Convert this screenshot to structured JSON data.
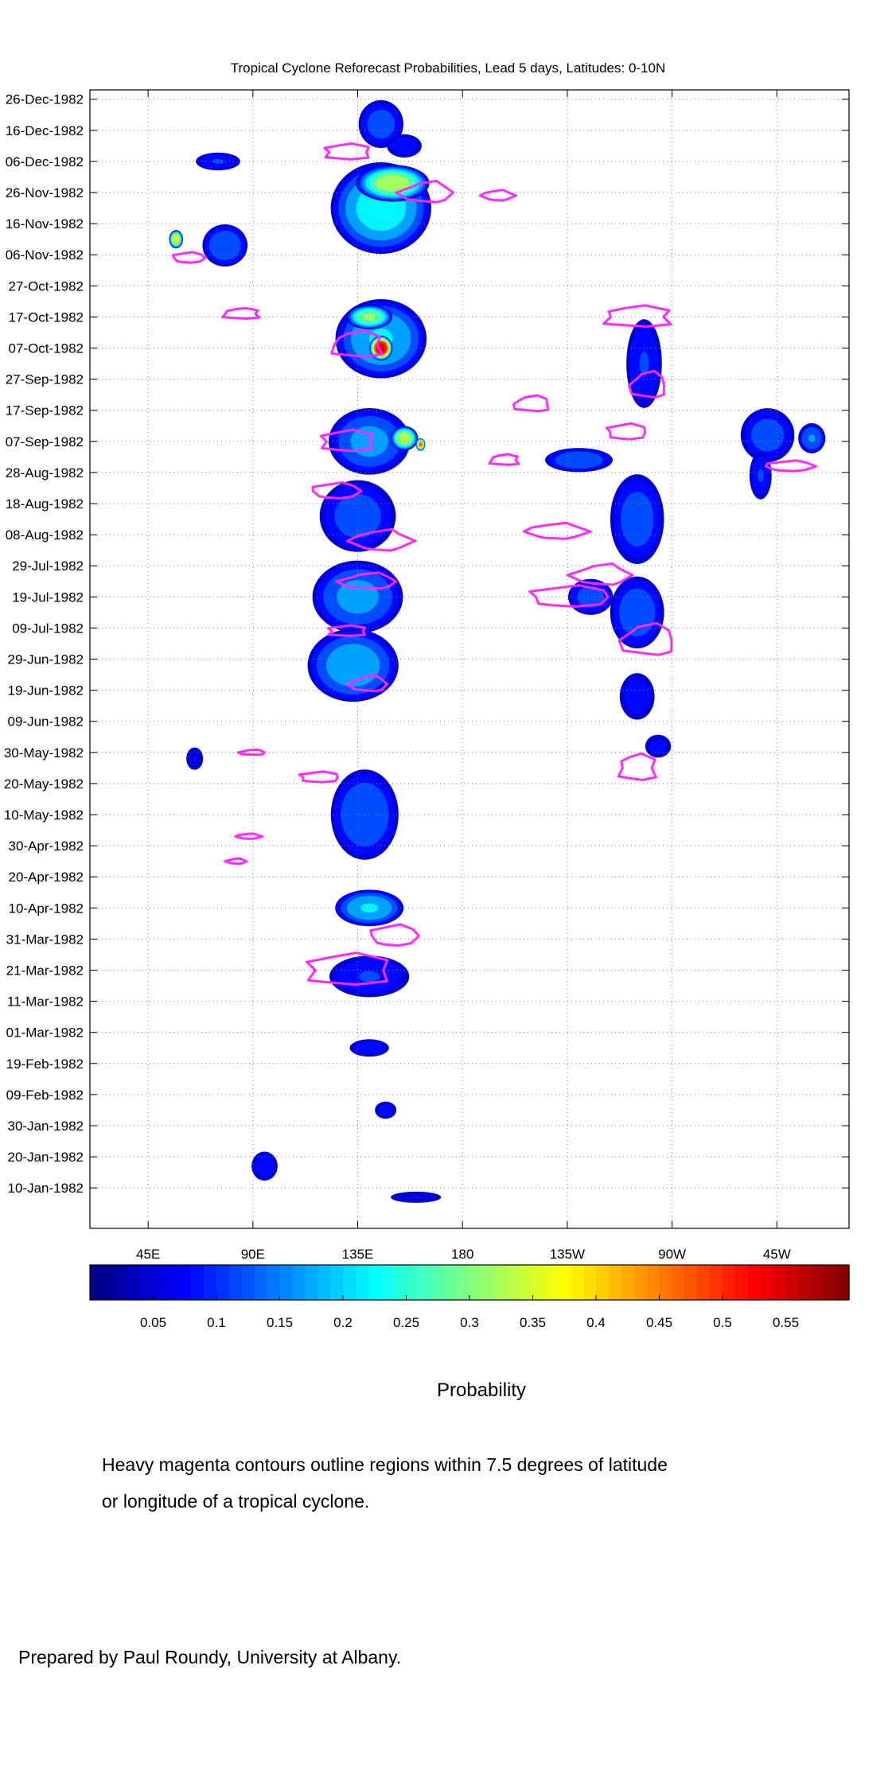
{
  "chart_data": {
    "type": "heatmap",
    "title": "Tropical Cyclone Reforecast Probabilities, Lead 5 days, Latitudes: 0-10N",
    "x_axis": {
      "ticks": [
        {
          "label": "45E",
          "lon": 45
        },
        {
          "label": "90E",
          "lon": 90
        },
        {
          "label": "135E",
          "lon": 135
        },
        {
          "label": "180",
          "lon": 180
        },
        {
          "label": "135W",
          "lon": 225
        },
        {
          "label": "90W",
          "lon": 270
        },
        {
          "label": "45W",
          "lon": 315
        }
      ],
      "range_lon": [
        20,
        346
      ]
    },
    "y_axis": {
      "range_day": [
        -3,
        363
      ],
      "ticks": [
        {
          "label": "10-Jan-1982",
          "day": 10
        },
        {
          "label": "20-Jan-1982",
          "day": 20
        },
        {
          "label": "30-Jan-1982",
          "day": 30
        },
        {
          "label": "09-Feb-1982",
          "day": 40
        },
        {
          "label": "19-Feb-1982",
          "day": 50
        },
        {
          "label": "01-Mar-1982",
          "day": 60
        },
        {
          "label": "11-Mar-1982",
          "day": 70
        },
        {
          "label": "21-Mar-1982",
          "day": 80
        },
        {
          "label": "31-Mar-1982",
          "day": 90
        },
        {
          "label": "10-Apr-1982",
          "day": 100
        },
        {
          "label": "20-Apr-1982",
          "day": 110
        },
        {
          "label": "30-Apr-1982",
          "day": 120
        },
        {
          "label": "10-May-1982",
          "day": 130
        },
        {
          "label": "20-May-1982",
          "day": 140
        },
        {
          "label": "30-May-1982",
          "day": 150
        },
        {
          "label": "09-Jun-1982",
          "day": 160
        },
        {
          "label": "19-Jun-1982",
          "day": 170
        },
        {
          "label": "29-Jun-1982",
          "day": 180
        },
        {
          "label": "09-Jul-1982",
          "day": 190
        },
        {
          "label": "19-Jul-1982",
          "day": 200
        },
        {
          "label": "29-Jul-1982",
          "day": 210
        },
        {
          "label": "08-Aug-1982",
          "day": 220
        },
        {
          "label": "18-Aug-1982",
          "day": 230
        },
        {
          "label": "28-Aug-1982",
          "day": 240
        },
        {
          "label": "07-Sep-1982",
          "day": 250
        },
        {
          "label": "17-Sep-1982",
          "day": 260
        },
        {
          "label": "27-Sep-1982",
          "day": 270
        },
        {
          "label": "07-Oct-1982",
          "day": 280
        },
        {
          "label": "17-Oct-1982",
          "day": 290
        },
        {
          "label": "27-Oct-1982",
          "day": 300
        },
        {
          "label": "06-Nov-1982",
          "day": 310
        },
        {
          "label": "16-Nov-1982",
          "day": 320
        },
        {
          "label": "26-Nov-1982",
          "day": 330
        },
        {
          "label": "06-Dec-1982",
          "day": 340
        },
        {
          "label": "16-Dec-1982",
          "day": 350
        },
        {
          "label": "26-Dec-1982",
          "day": 360
        }
      ]
    },
    "grid": true,
    "colorbar": {
      "label": "Probability",
      "range": [
        0,
        0.6
      ],
      "tick_labels": [
        "0.05",
        "0.1",
        "0.15",
        "0.2",
        "0.25",
        "0.3",
        "0.35",
        "0.4",
        "0.45",
        "0.5",
        "0.55"
      ],
      "tick_values": [
        0.05,
        0.1,
        0.15,
        0.2,
        0.25,
        0.3,
        0.35,
        0.4,
        0.45,
        0.5,
        0.55
      ],
      "colormap": "jet"
    },
    "probability_regions": [
      {
        "lon": 145,
        "day": 352,
        "rlon": 10,
        "rday": 8,
        "peak": 0.12
      },
      {
        "lon": 155,
        "day": 345,
        "rlon": 8,
        "rday": 4,
        "peak": 0.08
      },
      {
        "lon": 75,
        "day": 340,
        "rlon": 10,
        "rday": 3,
        "peak": 0.1
      },
      {
        "lon": 145,
        "day": 325,
        "rlon": 22,
        "rday": 15,
        "peak": 0.22
      },
      {
        "lon": 150,
        "day": 333,
        "rlon": 16,
        "rday": 6,
        "peak": 0.32
      },
      {
        "lon": 78,
        "day": 313,
        "rlon": 10,
        "rday": 7,
        "peak": 0.14
      },
      {
        "lon": 57,
        "day": 315,
        "rlon": 3,
        "rday": 3,
        "peak": 0.36
      },
      {
        "lon": 145,
        "day": 283,
        "rlon": 20,
        "rday": 13,
        "peak": 0.2
      },
      {
        "lon": 145,
        "day": 280,
        "rlon": 5,
        "rday": 4,
        "peak": 0.55
      },
      {
        "lon": 140,
        "day": 290,
        "rlon": 10,
        "rday": 4,
        "peak": 0.3
      },
      {
        "lon": 140,
        "day": 250,
        "rlon": 18,
        "rday": 11,
        "peak": 0.16
      },
      {
        "lon": 155,
        "day": 251,
        "rlon": 6,
        "rday": 4,
        "peak": 0.33
      },
      {
        "lon": 162,
        "day": 249,
        "rlon": 2,
        "rday": 2,
        "peak": 0.45
      },
      {
        "lon": 135,
        "day": 226,
        "rlon": 17,
        "rday": 12,
        "peak": 0.12
      },
      {
        "lon": 135,
        "day": 200,
        "rlon": 20,
        "rday": 12,
        "peak": 0.16
      },
      {
        "lon": 133,
        "day": 178,
        "rlon": 20,
        "rday": 12,
        "peak": 0.18
      },
      {
        "lon": 138,
        "day": 130,
        "rlon": 15,
        "rday": 15,
        "peak": 0.14
      },
      {
        "lon": 140,
        "day": 100,
        "rlon": 15,
        "rday": 6,
        "peak": 0.2
      },
      {
        "lon": 140,
        "day": 78,
        "rlon": 18,
        "rday": 7,
        "peak": 0.1
      },
      {
        "lon": 140,
        "day": 55,
        "rlon": 9,
        "rday": 3,
        "peak": 0.08
      },
      {
        "lon": 147,
        "day": 35,
        "rlon": 5,
        "rday": 3,
        "peak": 0.07
      },
      {
        "lon": 95,
        "day": 17,
        "rlon": 6,
        "rday": 5,
        "peak": 0.08
      },
      {
        "lon": 160,
        "day": 7,
        "rlon": 12,
        "rday": 2,
        "peak": 0.06
      },
      {
        "lon": 258,
        "day": 275,
        "rlon": 8,
        "rday": 15,
        "peak": 0.1
      },
      {
        "lon": 255,
        "day": 225,
        "rlon": 12,
        "rday": 15,
        "peak": 0.12
      },
      {
        "lon": 255,
        "day": 195,
        "rlon": 12,
        "rday": 12,
        "peak": 0.13
      },
      {
        "lon": 255,
        "day": 168,
        "rlon": 8,
        "rday": 8,
        "peak": 0.08
      },
      {
        "lon": 235,
        "day": 200,
        "rlon": 10,
        "rday": 6,
        "peak": 0.12
      },
      {
        "lon": 230,
        "day": 244,
        "rlon": 15,
        "rday": 4,
        "peak": 0.14
      },
      {
        "lon": 311,
        "day": 252,
        "rlon": 12,
        "rday": 9,
        "peak": 0.12
      },
      {
        "lon": 330,
        "day": 251,
        "rlon": 6,
        "rday": 5,
        "peak": 0.15
      },
      {
        "lon": 308,
        "day": 239,
        "rlon": 5,
        "rday": 8,
        "peak": 0.1
      },
      {
        "lon": 264,
        "day": 152,
        "rlon": 6,
        "rday": 4,
        "peak": 0.07
      },
      {
        "lon": 65,
        "day": 148,
        "rlon": 4,
        "rday": 4,
        "peak": 0.06
      }
    ],
    "tc_contours": [
      {
        "lon": 130,
        "day": 343,
        "rlon": 12,
        "rday": 3
      },
      {
        "lon": 165,
        "day": 330,
        "rlon": 14,
        "rday": 4
      },
      {
        "lon": 195,
        "day": 329,
        "rlon": 8,
        "rday": 2
      },
      {
        "lon": 62,
        "day": 309,
        "rlon": 8,
        "rday": 2
      },
      {
        "lon": 85,
        "day": 291,
        "rlon": 10,
        "rday": 2
      },
      {
        "lon": 135,
        "day": 281,
        "rlon": 14,
        "rday": 5
      },
      {
        "lon": 130,
        "day": 250,
        "rlon": 14,
        "rday": 4
      },
      {
        "lon": 125,
        "day": 234,
        "rlon": 12,
        "rday": 3
      },
      {
        "lon": 145,
        "day": 218,
        "rlon": 15,
        "rday": 4
      },
      {
        "lon": 140,
        "day": 205,
        "rlon": 15,
        "rday": 3
      },
      {
        "lon": 130,
        "day": 189,
        "rlon": 10,
        "rday": 2
      },
      {
        "lon": 140,
        "day": 172,
        "rlon": 10,
        "rday": 3
      },
      {
        "lon": 118,
        "day": 142,
        "rlon": 10,
        "rday": 2
      },
      {
        "lon": 150,
        "day": 91,
        "rlon": 12,
        "rday": 4
      },
      {
        "lon": 130,
        "day": 80,
        "rlon": 22,
        "rday": 6
      },
      {
        "lon": 210,
        "day": 262,
        "rlon": 10,
        "rday": 3
      },
      {
        "lon": 198,
        "day": 244,
        "rlon": 8,
        "rday": 2
      },
      {
        "lon": 220,
        "day": 221,
        "rlon": 15,
        "rday": 3
      },
      {
        "lon": 240,
        "day": 207,
        "rlon": 15,
        "rday": 4
      },
      {
        "lon": 225,
        "day": 200,
        "rlon": 20,
        "rday": 4
      },
      {
        "lon": 260,
        "day": 186,
        "rlon": 15,
        "rday": 6
      },
      {
        "lon": 255,
        "day": 145,
        "rlon": 10,
        "rday": 5
      },
      {
        "lon": 255,
        "day": 290,
        "rlon": 18,
        "rday": 4
      },
      {
        "lon": 260,
        "day": 268,
        "rlon": 10,
        "rday": 5
      },
      {
        "lon": 250,
        "day": 253,
        "rlon": 10,
        "rday": 3
      },
      {
        "lon": 320,
        "day": 242,
        "rlon": 12,
        "rday": 2
      },
      {
        "lon": 90,
        "day": 150,
        "rlon": 7,
        "rday": 1
      },
      {
        "lon": 88,
        "day": 123,
        "rlon": 6,
        "rday": 1
      },
      {
        "lon": 83,
        "day": 115,
        "rlon": 5,
        "rday": 1
      }
    ]
  },
  "caption": {
    "note_line1": "Heavy magenta contours outline regions within 7.5 degrees of latitude",
    "note_line2": "or longitude of a tropical cyclone.",
    "credit": "Prepared by Paul Roundy, University at Albany."
  },
  "colors": {
    "contour": "#ff2bff",
    "grid": "#7f7f7f"
  }
}
